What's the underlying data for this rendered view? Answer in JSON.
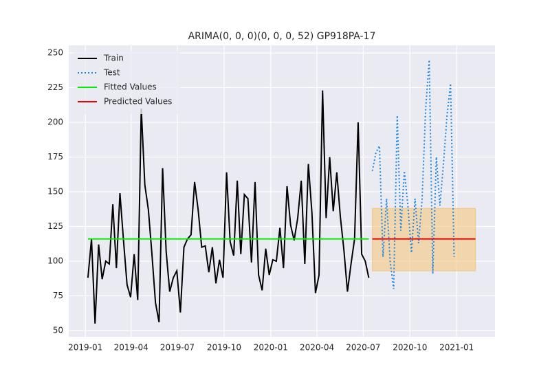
{
  "chart_data": {
    "type": "line",
    "title": "ARIMA(0, 0, 0)(0, 0, 0, 52) GP918PA-17",
    "xlim": [
      -5.4,
      114.5
    ],
    "ylim": [
      45.5,
      255.5
    ],
    "xticks": [
      {
        "value": -0.714,
        "label": "2019-01"
      },
      {
        "value": 12.14,
        "label": "2019-04"
      },
      {
        "value": 25.14,
        "label": "2019-07"
      },
      {
        "value": 38.29,
        "label": "2019-10"
      },
      {
        "value": 51.43,
        "label": "2020-01"
      },
      {
        "value": 64.43,
        "label": "2020-04"
      },
      {
        "value": 77.43,
        "label": "2020-07"
      },
      {
        "value": 90.57,
        "label": "2020-10"
      },
      {
        "value": 103.71,
        "label": "2021-01"
      }
    ],
    "yticks": [
      50,
      75,
      100,
      125,
      150,
      175,
      200,
      225,
      250
    ],
    "grid": true,
    "legend": "upper left",
    "interval": {
      "color": "#f5c77e",
      "x": [
        80,
        81,
        82,
        83,
        84,
        85,
        86,
        87,
        88,
        89,
        90,
        91,
        92,
        93,
        94,
        95,
        96,
        97,
        98,
        99,
        100,
        101,
        102,
        103,
        104,
        105,
        106,
        107,
        108,
        109
      ],
      "lower": [
        93,
        93,
        93,
        93,
        93,
        93,
        93,
        93,
        93,
        93,
        93,
        93,
        93,
        93,
        93,
        93,
        93,
        93,
        93,
        93,
        93,
        93,
        93,
        93,
        93,
        93,
        93,
        93,
        93,
        93
      ],
      "upper": [
        138,
        138,
        138,
        138,
        138,
        138,
        138,
        138,
        138,
        138,
        138,
        138,
        138,
        138,
        138,
        138,
        138,
        138,
        138,
        138,
        138,
        138,
        138,
        138,
        138,
        138,
        138,
        138,
        138,
        138
      ]
    },
    "series": [
      {
        "name": "Train",
        "color": "#000000",
        "linestyle": "solid",
        "x": [
          0,
          1,
          2,
          3,
          4,
          5,
          6,
          7,
          8,
          9,
          10,
          11,
          12,
          13,
          14,
          15,
          16,
          17,
          18,
          19,
          20,
          21,
          22,
          23,
          24,
          25,
          26,
          27,
          28,
          29,
          30,
          31,
          32,
          33,
          34,
          35,
          36,
          37,
          38,
          39,
          40,
          41,
          42,
          43,
          44,
          45,
          46,
          47,
          48,
          49,
          50,
          51,
          52,
          53,
          54,
          55,
          56,
          57,
          58,
          59,
          60,
          61,
          62,
          63,
          64,
          65,
          66,
          67,
          68,
          69,
          70,
          71,
          72,
          73,
          74,
          75,
          76,
          77,
          78,
          79
        ],
        "values": [
          88,
          116,
          55,
          112,
          87,
          100,
          98,
          141,
          95,
          149,
          115,
          83,
          74,
          105,
          72,
          210,
          155,
          137,
          105,
          70,
          56,
          167,
          107,
          78,
          88,
          93,
          63,
          110,
          116,
          119,
          157,
          137,
          110,
          111,
          92,
          110,
          84,
          101,
          88,
          164,
          114,
          104,
          158,
          105,
          148,
          145,
          99,
          157,
          90,
          79,
          109,
          90,
          101,
          100,
          124,
          95,
          154,
          126,
          115,
          131,
          158,
          98,
          170,
          135,
          77,
          90,
          223,
          131,
          175,
          136,
          164,
          132,
          108,
          78,
          98,
          116,
          200,
          105,
          100,
          88
        ]
      },
      {
        "name": "Test",
        "color": "#1e88e5",
        "linestyle": "dotted",
        "x": [
          80,
          81,
          82,
          83,
          84,
          85,
          86,
          87,
          88,
          89,
          90,
          91,
          92,
          93,
          94,
          95,
          96,
          97,
          98,
          99,
          100,
          101,
          102,
          103
        ],
        "values": [
          165,
          178,
          183,
          103,
          145,
          100,
          80,
          205,
          122,
          165,
          140,
          106,
          145,
          113,
          145,
          210,
          245,
          91,
          175,
          140,
          170,
          205,
          228,
          103
        ]
      },
      {
        "name": "Fitted Values",
        "color": "#00ee00",
        "linestyle": "solid",
        "x": [
          0,
          1,
          2,
          3,
          4,
          5,
          6,
          7,
          8,
          9,
          10,
          11,
          12,
          13,
          14,
          15,
          16,
          17,
          18,
          19,
          20,
          21,
          22,
          23,
          24,
          25,
          26,
          27,
          28,
          29,
          30,
          31,
          32,
          33,
          34,
          35,
          36,
          37,
          38,
          39,
          40,
          41,
          42,
          43,
          44,
          45,
          46,
          47,
          48,
          49,
          50,
          51,
          52,
          53,
          54,
          55,
          56,
          57,
          58,
          59,
          60,
          61,
          62,
          63,
          64,
          65,
          66,
          67,
          68,
          69,
          70,
          71,
          72,
          73,
          74,
          75,
          76,
          77,
          78,
          79
        ],
        "values": [
          116,
          116,
          116,
          116,
          116,
          116,
          116,
          116,
          116,
          116,
          116,
          116,
          116,
          116,
          116,
          116,
          116,
          116,
          116,
          116,
          116,
          116,
          116,
          116,
          116,
          116,
          116,
          116,
          116,
          116,
          116,
          116,
          116,
          116,
          116,
          116,
          116,
          116,
          116,
          116,
          116,
          116,
          116,
          116,
          116,
          116,
          116,
          116,
          116,
          116,
          116,
          116,
          116,
          116,
          116,
          116,
          116,
          116,
          116,
          116,
          116,
          116,
          116,
          116,
          116,
          116,
          116,
          116,
          116,
          116,
          116,
          116,
          116,
          116,
          116,
          116,
          116,
          116,
          116,
          116
        ]
      },
      {
        "name": "Predicted Values",
        "color": "#ee0000",
        "linestyle": "solid",
        "x": [
          80,
          81,
          82,
          83,
          84,
          85,
          86,
          87,
          88,
          89,
          90,
          91,
          92,
          93,
          94,
          95,
          96,
          97,
          98,
          99,
          100,
          101,
          102,
          103,
          104,
          105,
          106,
          107,
          108,
          109
        ],
        "values": [
          116,
          116,
          116,
          116,
          116,
          116,
          116,
          116,
          116,
          116,
          116,
          116,
          116,
          116,
          116,
          116,
          116,
          116,
          116,
          116,
          116,
          116,
          116,
          116,
          116,
          116,
          116,
          116,
          116,
          116
        ]
      }
    ]
  }
}
